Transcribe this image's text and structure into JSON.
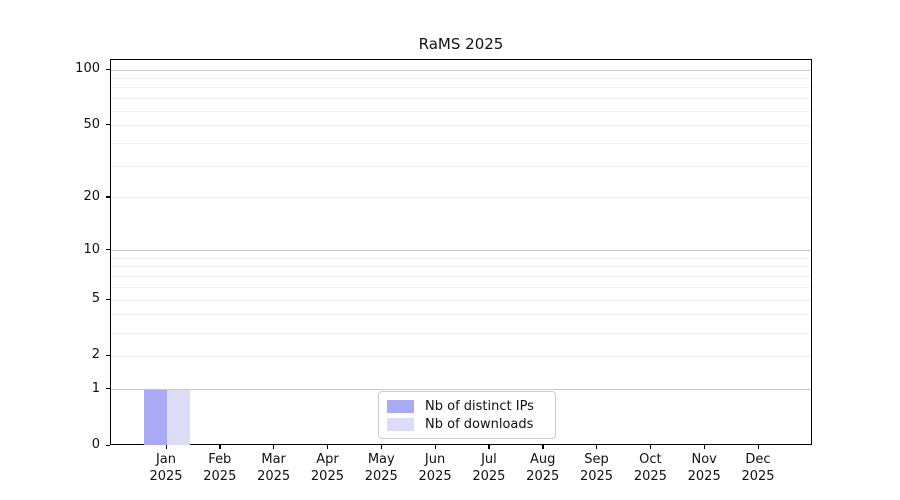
{
  "chart_data": {
    "type": "bar",
    "title": "RaMS 2025",
    "categories": [
      "Jan 2025",
      "Feb 2025",
      "Mar 2025",
      "Apr 2025",
      "May 2025",
      "Jun 2025",
      "Jul 2025",
      "Aug 2025",
      "Sep 2025",
      "Oct 2025",
      "Nov 2025",
      "Dec 2025"
    ],
    "series": [
      {
        "name": "Nb of distinct IPs",
        "color": "#a9a9f5",
        "values": [
          1,
          0,
          0,
          0,
          0,
          0,
          0,
          0,
          0,
          0,
          0,
          0
        ]
      },
      {
        "name": "Nb of downloads",
        "color": "#dcdcf7",
        "values": [
          1,
          0,
          0,
          0,
          0,
          0,
          0,
          0,
          0,
          0,
          0,
          0
        ]
      }
    ],
    "xlabel": "",
    "ylabel": "",
    "yscale": "log1p",
    "ylim": [
      0,
      113
    ],
    "y_tick_values": [
      0,
      1,
      2,
      5,
      10,
      20,
      50,
      100
    ],
    "y_tick_labels": [
      "0",
      "1",
      "2",
      "5",
      "10",
      "20",
      "50",
      "100"
    ],
    "y_decade_values": [
      1,
      10,
      100
    ],
    "y_minor_values": [
      3,
      4,
      6,
      7,
      8,
      9,
      30,
      40,
      60,
      70,
      80,
      90
    ],
    "grid": "horizontal",
    "legend_position": "bottom-center",
    "colors": {
      "decade_gridline": "#c8c8c8",
      "gridline": "#ececec",
      "minor_gridline": "#f1f1f1",
      "axis": "#000000",
      "text": "#111111"
    }
  }
}
